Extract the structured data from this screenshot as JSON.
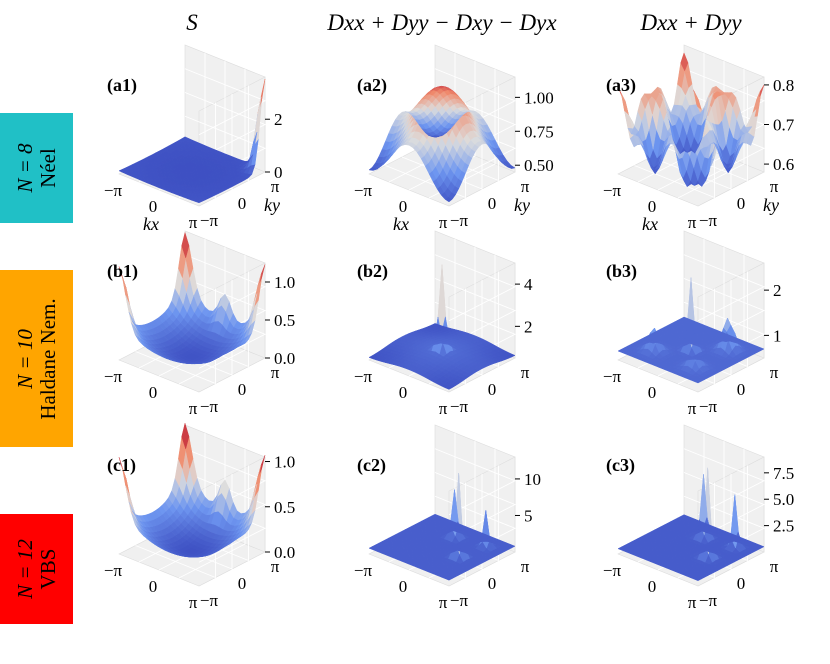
{
  "column_titles": [
    "S",
    "Dxx + Dyy − Dxy − Dyx",
    "Dxx + Dyy"
  ],
  "rows": [
    {
      "n": "N = 8",
      "phase": "Néel",
      "color": "#20c0c6"
    },
    {
      "n": "N = 10",
      "phase": "Haldane Nem.",
      "color": "#ffa500"
    },
    {
      "n": "N = 12",
      "phase": "VBS",
      "color": "#ff0000"
    }
  ],
  "chart_data": [
    {
      "panel": "(a1)",
      "type": "surface",
      "shape": "bowl with sharp corner peak at (π,π)",
      "zticks": [
        "0",
        "2"
      ],
      "zlim": [
        0,
        3.6
      ],
      "xticks": [
        "−π",
        "0",
        "π"
      ],
      "yticks": [
        "−π",
        "0",
        "π"
      ],
      "xlabel": "kx",
      "ylabel": "ky"
    },
    {
      "panel": "(a2)",
      "type": "surface",
      "shape": "dome, maximum at k = 0",
      "zticks": [
        "0.50",
        "0.75",
        "1.00"
      ],
      "zlim": [
        0.45,
        1.15
      ],
      "xticks": [
        "−π",
        "0",
        "π"
      ],
      "yticks": [
        "−π",
        "0",
        "π"
      ],
      "xlabel": "kx",
      "ylabel": "ky"
    },
    {
      "panel": "(a3)",
      "type": "surface",
      "shape": "oscillating ridges",
      "zticks": [
        "0.6",
        "0.7",
        "0.8"
      ],
      "zlim": [
        0.58,
        0.82
      ],
      "xticks": [
        "−π",
        "0",
        "π"
      ],
      "yticks": [
        "−π",
        "0",
        "π"
      ],
      "xlabel": "kx",
      "ylabel": "ky"
    },
    {
      "panel": "(b1)",
      "type": "surface",
      "shape": "bowl with peaks at corners",
      "zticks": [
        "0.0",
        "0.5",
        "1.0"
      ],
      "zlim": [
        0,
        1.25
      ],
      "xticks": [
        "−π",
        "0",
        "π"
      ],
      "yticks": [
        "−π",
        "0",
        "π"
      ]
    },
    {
      "panel": "(b2)",
      "type": "surface",
      "shape": "single sharp peak at k = 0",
      "zticks": [
        "2",
        "4"
      ],
      "zlim": [
        0.5,
        5
      ],
      "xticks": [
        "−π",
        "0",
        "π"
      ],
      "yticks": [
        "−π",
        "0",
        "π"
      ]
    },
    {
      "panel": "(b3)",
      "type": "surface",
      "shape": "central peak with satellite peaks",
      "zticks": [
        "1",
        "2"
      ],
      "zlim": [
        0.5,
        2.6
      ],
      "xticks": [
        "−π",
        "0",
        "π"
      ],
      "yticks": [
        "−π",
        "0",
        "π"
      ]
    },
    {
      "panel": "(c1)",
      "type": "surface",
      "shape": "bowl with peaks at corners",
      "zticks": [
        "0.0",
        "0.5",
        "1.0"
      ],
      "zlim": [
        0,
        1.05
      ],
      "xticks": [
        "−π",
        "0",
        "π"
      ],
      "yticks": [
        "−π",
        "0",
        "π"
      ]
    },
    {
      "panel": "(c2)",
      "type": "surface",
      "shape": "peaks at (π,0) and (0,π)",
      "zticks": [
        "5",
        "10"
      ],
      "zlim": [
        0,
        13
      ],
      "xticks": [
        "−π",
        "0",
        "π"
      ],
      "yticks": [
        "−π",
        "0",
        "π"
      ]
    },
    {
      "panel": "(c3)",
      "type": "surface",
      "shape": "peaks at (π,0) and (0,π)",
      "zticks": [
        "2.5",
        "5.0",
        "7.5"
      ],
      "zlim": [
        0,
        9
      ],
      "xticks": [
        "−π",
        "0",
        "π"
      ],
      "yticks": [
        "−π",
        "0",
        "π"
      ]
    }
  ]
}
